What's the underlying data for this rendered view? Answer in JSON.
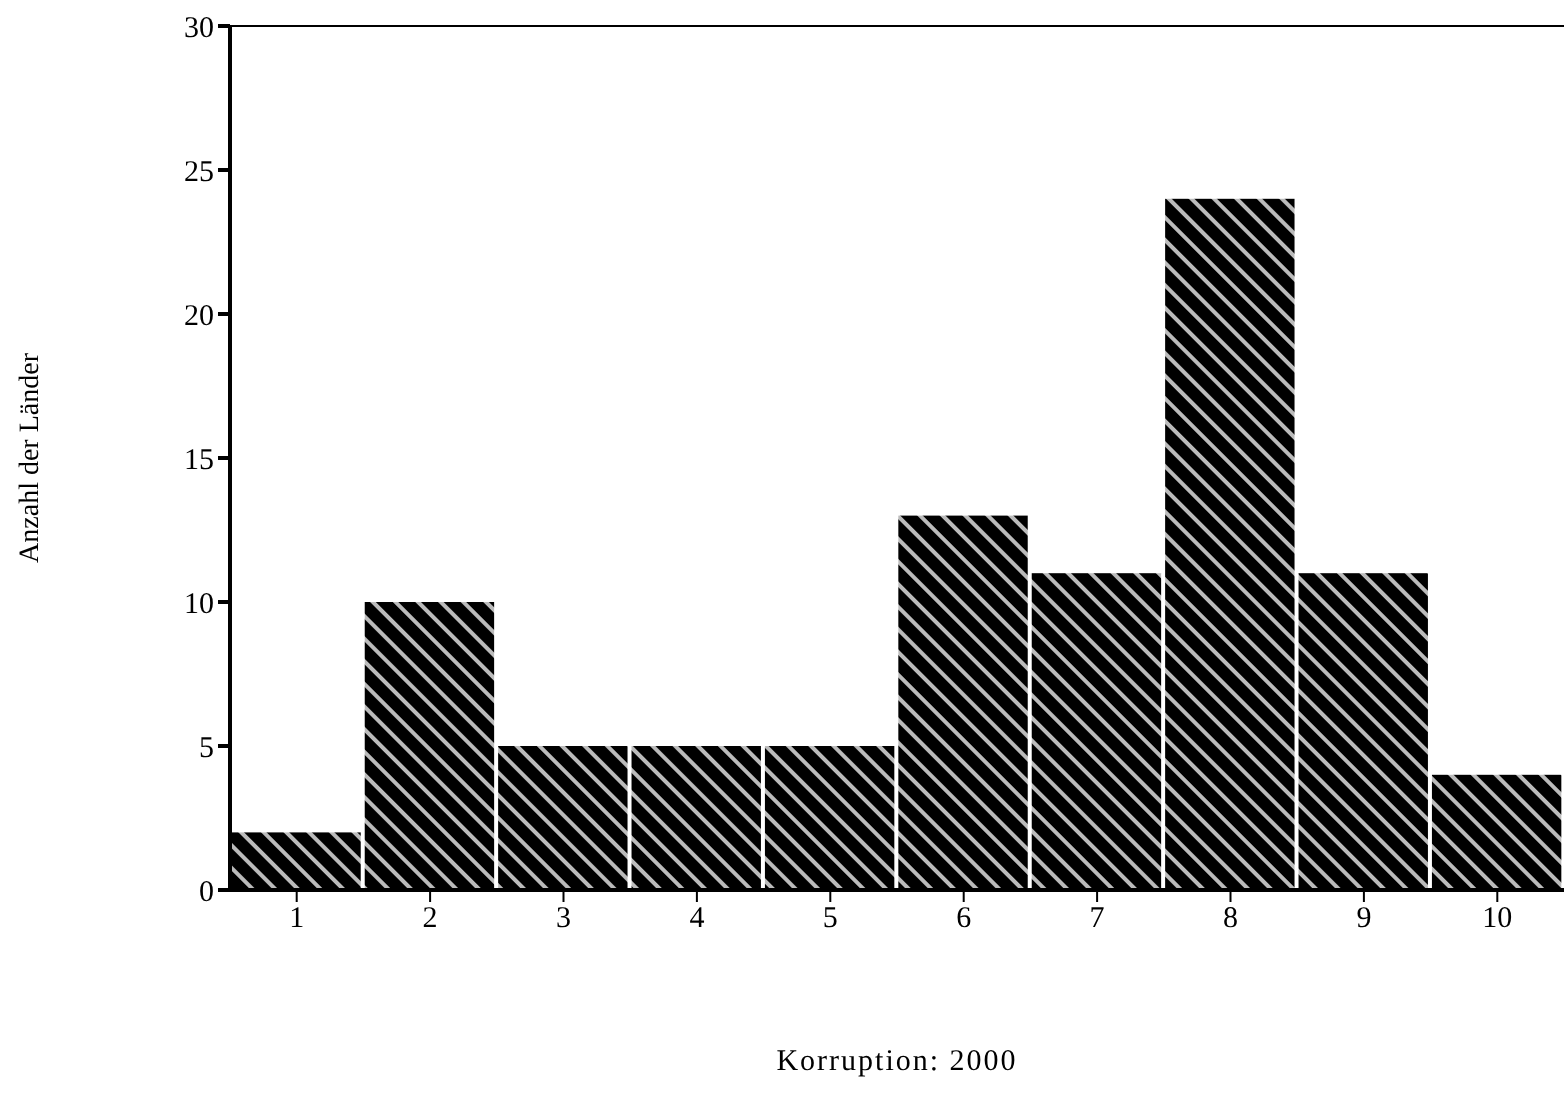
{
  "chart_data": {
    "type": "histogram",
    "xlabel": "Korruption: 2000",
    "ylabel": "Anzahl der Länder",
    "bins": [
      0.5,
      1.5,
      2.5,
      3.5,
      4.5,
      5.5,
      6.5,
      7.5,
      8.5,
      9.5,
      10.5
    ],
    "values": [
      2,
      10,
      5,
      5,
      5,
      13,
      11,
      24,
      11,
      4
    ],
    "color": "#000000",
    "xlim": [
      0.5,
      10.5
    ],
    "xticks": [
      1,
      2,
      3,
      4,
      5,
      6,
      7,
      8,
      9,
      10
    ],
    "ylim": [
      0,
      30
    ],
    "yticks": [
      0,
      5,
      10,
      15,
      20,
      25,
      30
    ],
    "grid": false,
    "legend": false
  }
}
